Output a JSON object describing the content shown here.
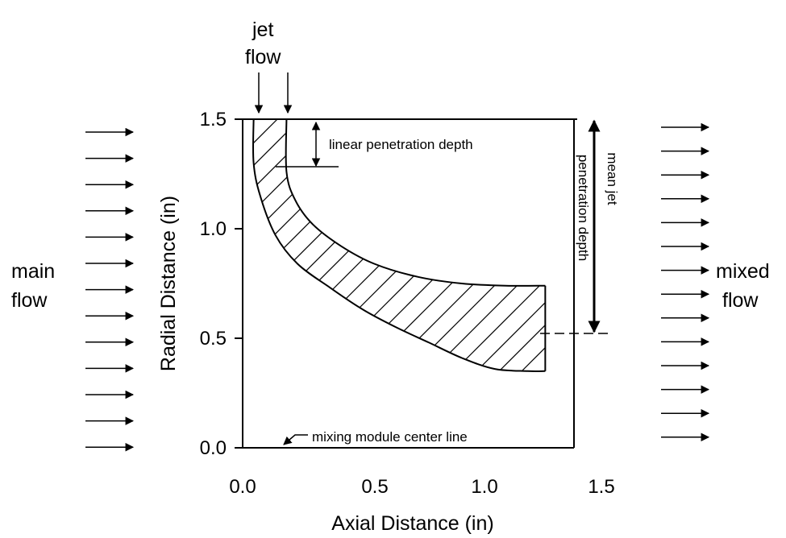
{
  "labels": {
    "jet_flow": [
      "jet",
      "flow"
    ],
    "main_flow": [
      "main",
      "flow"
    ],
    "mixed_flow": [
      "mixed",
      "flow"
    ],
    "linear_penetration": "linear penetration depth",
    "mean_penetration": [
      "mean jet",
      "penetration depth"
    ],
    "center_line": "mixing module center line"
  },
  "axes": {
    "xlabel": "Axial Distance (in)",
    "ylabel": "Radial Distance (in)",
    "x_ticks": [
      "0.0",
      "0.5",
      "1.0",
      "1.5"
    ],
    "y_ticks": [
      "0.0",
      "0.5",
      "1.0",
      "1.5"
    ],
    "xlim": [
      0,
      1.5
    ],
    "ylim": [
      0,
      1.5
    ]
  },
  "chart_data": {
    "type": "area",
    "title": "",
    "xlabel": "Axial Distance (in)",
    "ylabel": "Radial Distance (in)",
    "xlim": [
      0,
      1.5
    ],
    "ylim": [
      0,
      1.5
    ],
    "series": [
      {
        "x": [
          0.05,
          0.05,
          0.08,
          0.15,
          0.25,
          0.4,
          0.55,
          0.7,
          0.85,
          1.0,
          1.15,
          1.3,
          1.38
        ],
        "y": [
          1.5,
          1.3,
          1.15,
          0.97,
          0.84,
          0.73,
          0.63,
          0.55,
          0.48,
          0.41,
          0.36,
          0.35,
          0.35
        ]
      },
      {
        "x": [
          0.2,
          0.2,
          0.24,
          0.32,
          0.45,
          0.6,
          0.8,
          1.0,
          1.2,
          1.38
        ],
        "y": [
          1.5,
          1.26,
          1.13,
          1.02,
          0.92,
          0.84,
          0.78,
          0.75,
          0.74,
          0.74
        ]
      }
    ],
    "annotations": [
      "linear penetration depth",
      "mean jet penetration depth",
      "mixing module center line"
    ]
  }
}
